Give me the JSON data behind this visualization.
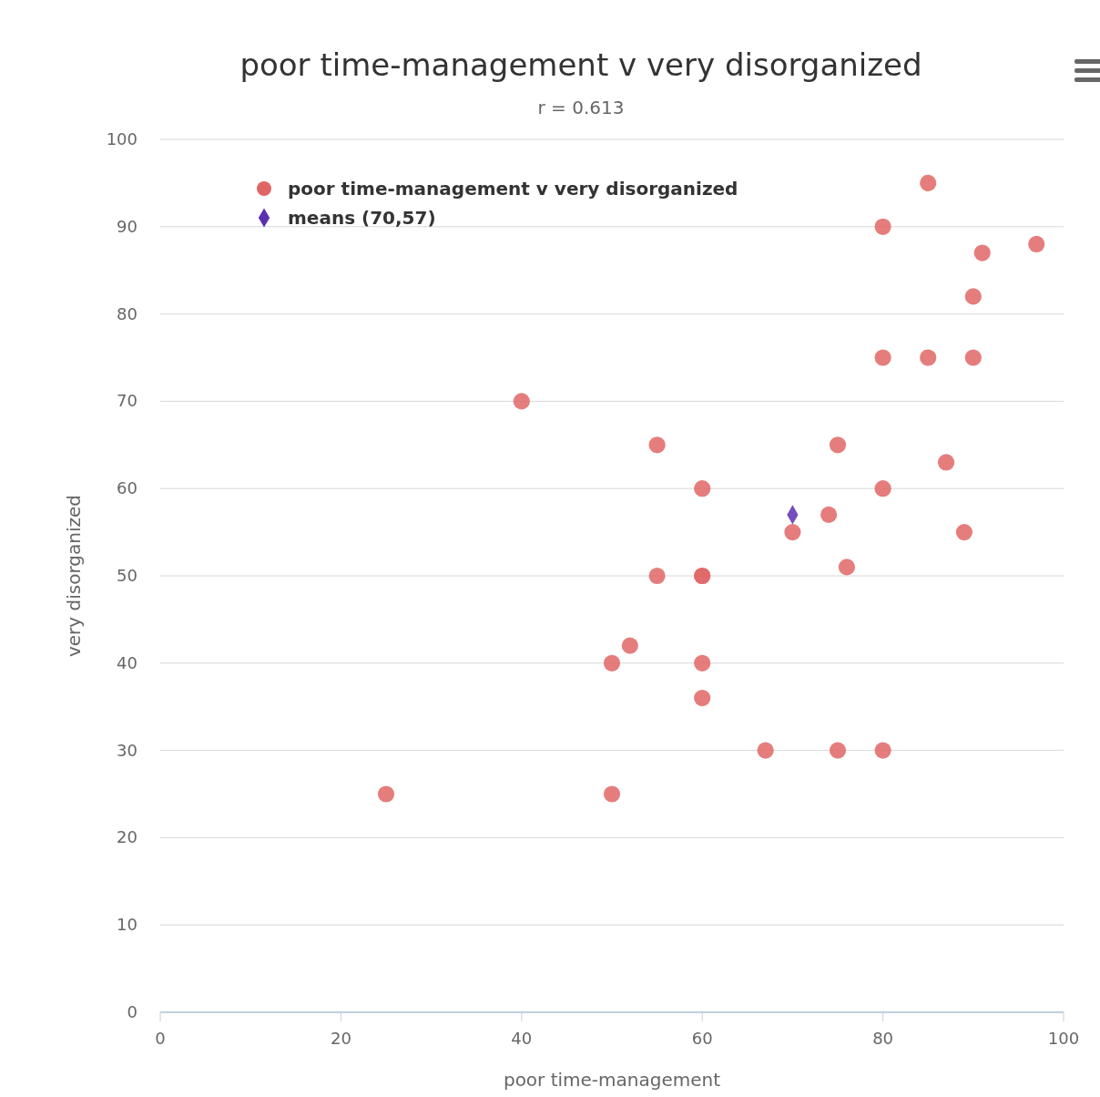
{
  "chart_data": {
    "type": "scatter",
    "title": "poor time-management v very disorganized",
    "subtitle": "r = 0.613",
    "xlabel": "poor time-management",
    "ylabel": "very disorganized",
    "xlim": [
      0,
      100
    ],
    "xticks": [
      0,
      20,
      40,
      60,
      80,
      100
    ],
    "ylim": [
      0,
      100
    ],
    "yticks": [
      0,
      10,
      20,
      30,
      40,
      50,
      60,
      70,
      80,
      90,
      100
    ],
    "grid": "y",
    "legend": "top left",
    "series": [
      {
        "name": "poor time-management v very disorganized",
        "color": "#e06666",
        "marker": "circle",
        "x": [
          25,
          40,
          50,
          50,
          52,
          55,
          55,
          60,
          60,
          60,
          60,
          60,
          67,
          70,
          74,
          75,
          75,
          76,
          80,
          80,
          80,
          80,
          85,
          85,
          87,
          89,
          90,
          90,
          91,
          97
        ],
        "values": [
          25,
          70,
          40,
          25,
          42,
          65,
          50,
          60,
          50,
          50,
          40,
          36,
          30,
          55,
          57,
          65,
          30,
          51,
          90,
          75,
          60,
          30,
          95,
          75,
          63,
          55,
          82,
          75,
          87,
          88
        ]
      },
      {
        "name": "means (70,57)",
        "color": "#5a2fb0",
        "marker": "diamond",
        "x": [
          70
        ],
        "values": [
          57
        ]
      }
    ]
  }
}
